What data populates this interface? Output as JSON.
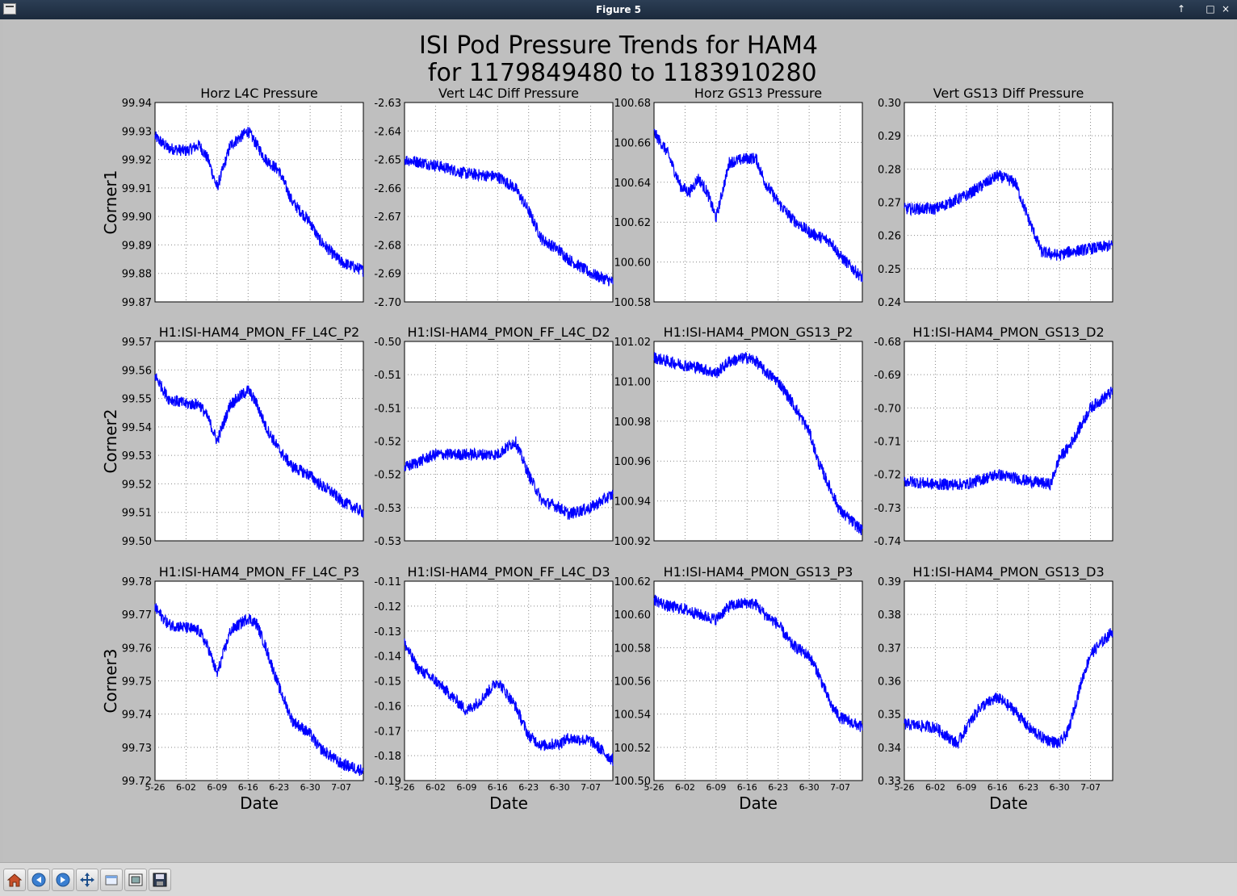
{
  "window": {
    "title": "Figure 5",
    "buttons": [
      "↑",
      "□",
      "×"
    ]
  },
  "figure": {
    "title_line1": "ISI Pod Pressure Trends for HAM4",
    "title_line2": " for 1179849480 to 1183910280",
    "row_labels": [
      "Corner1",
      "Corner2",
      "Corner3"
    ],
    "x_label": "Date"
  },
  "toolbar": {
    "buttons": [
      "home-icon",
      "back-arrow-icon",
      "forward-arrow-icon",
      "pan-move-icon",
      "zoom-rect-icon",
      "configure-subplots-icon",
      "save-disk-icon"
    ]
  },
  "chart_data": [
    {
      "type": "line",
      "title": "Horz L4C Pressure",
      "row": 0,
      "col": 0,
      "yticks": [
        "99.94",
        "99.93",
        "99.92",
        "99.91",
        "99.90",
        "99.89",
        "99.88",
        "99.87"
      ],
      "xticks": [
        "5-26",
        "6-02",
        "6-09",
        "6-16",
        "6-23",
        "6-30",
        "7-07"
      ],
      "ylim": [
        99.87,
        99.94
      ],
      "color": "#0000ff",
      "series": [
        {
          "x": [
            "5-26",
            "5-29",
            "6-02",
            "6-05",
            "6-07",
            "6-09",
            "6-12",
            "6-16",
            "6-18",
            "6-20",
            "6-23",
            "6-26",
            "6-30",
            "7-02",
            "7-05",
            "7-07",
            "7-12"
          ],
          "y": [
            99.928,
            99.924,
            99.923,
            99.925,
            99.92,
            99.91,
            99.925,
            99.93,
            99.925,
            99.92,
            99.916,
            99.905,
            99.898,
            99.892,
            99.887,
            99.884,
            99.881
          ]
        }
      ]
    },
    {
      "type": "line",
      "title": "Vert L4C Diff Pressure",
      "row": 0,
      "col": 1,
      "yticks": [
        "-2.63",
        "-2.64",
        "-2.65",
        "-2.66",
        "-2.67",
        "-2.68",
        "-2.69",
        "-2.70"
      ],
      "xticks": [
        "5-26",
        "6-02",
        "6-09",
        "6-16",
        "6-23",
        "6-30",
        "7-07"
      ],
      "ylim": [
        -2.7,
        -2.63
      ],
      "color": "#0000ff",
      "series": [
        {
          "x": [
            "5-26",
            "6-02",
            "6-09",
            "6-16",
            "6-20",
            "6-23",
            "6-26",
            "6-30",
            "7-02",
            "7-05",
            "7-07",
            "7-12"
          ],
          "y": [
            -2.65,
            -2.652,
            -2.655,
            -2.656,
            -2.66,
            -2.668,
            -2.678,
            -2.682,
            -2.685,
            -2.688,
            -2.69,
            -2.693
          ]
        }
      ]
    },
    {
      "type": "line",
      "title": "Horz GS13 Pressure",
      "row": 0,
      "col": 2,
      "yticks": [
        "100.68",
        "100.66",
        "100.64",
        "100.62",
        "100.60",
        "100.58"
      ],
      "xticks": [
        "5-26",
        "6-02",
        "6-09",
        "6-16",
        "6-23",
        "6-30",
        "7-07"
      ],
      "ylim": [
        100.58,
        100.68
      ],
      "color": "#0000ff",
      "series": [
        {
          "x": [
            "5-26",
            "5-29",
            "6-01",
            "6-03",
            "6-05",
            "6-07",
            "6-09",
            "6-12",
            "6-16",
            "6-18",
            "6-20",
            "6-23",
            "6-26",
            "6-30",
            "7-02",
            "7-05",
            "7-07",
            "7-12"
          ],
          "y": [
            100.665,
            100.655,
            100.638,
            100.635,
            100.642,
            100.635,
            100.622,
            100.65,
            100.652,
            100.652,
            100.64,
            100.63,
            100.622,
            100.615,
            100.613,
            100.61,
            100.603,
            100.592
          ]
        }
      ]
    },
    {
      "type": "line",
      "title": "Vert GS13 Diff Pressure",
      "row": 0,
      "col": 3,
      "yticks": [
        "0.30",
        "0.29",
        "0.28",
        "0.27",
        "0.26",
        "0.25",
        "0.24"
      ],
      "xticks": [
        "5-26",
        "6-02",
        "6-09",
        "6-16",
        "6-23",
        "6-30",
        "7-07"
      ],
      "ylim": [
        0.24,
        0.3
      ],
      "color": "#0000ff",
      "series": [
        {
          "x": [
            "5-26",
            "6-02",
            "6-09",
            "6-16",
            "6-20",
            "6-23",
            "6-26",
            "6-30",
            "7-02",
            "7-07",
            "7-12"
          ],
          "y": [
            0.268,
            0.268,
            0.272,
            0.278,
            0.276,
            0.265,
            0.255,
            0.254,
            0.255,
            0.256,
            0.257
          ]
        }
      ]
    },
    {
      "type": "line",
      "title": "H1:ISI-HAM4_PMON_FF_L4C_P2",
      "row": 1,
      "col": 0,
      "yticks": [
        "99.57",
        "99.56",
        "99.55",
        "99.54",
        "99.53",
        "99.52",
        "99.51",
        "99.50"
      ],
      "xticks": [
        "5-26",
        "6-02",
        "6-09",
        "6-16",
        "6-23",
        "6-30",
        "7-07"
      ],
      "ylim": [
        99.5,
        99.57
      ],
      "color": "#0000ff",
      "series": [
        {
          "x": [
            "5-26",
            "5-29",
            "6-02",
            "6-05",
            "6-07",
            "6-09",
            "6-12",
            "6-16",
            "6-18",
            "6-20",
            "6-23",
            "6-26",
            "6-30",
            "7-02",
            "7-05",
            "7-07",
            "7-12"
          ],
          "y": [
            99.558,
            99.55,
            99.548,
            99.548,
            99.543,
            99.535,
            99.548,
            99.553,
            99.548,
            99.54,
            99.532,
            99.526,
            99.523,
            99.52,
            99.517,
            99.514,
            99.51
          ]
        }
      ]
    },
    {
      "type": "line",
      "title": "H1:ISI-HAM4_PMON_FF_L4C_D2",
      "row": 1,
      "col": 1,
      "yticks": [
        "-0.50",
        "-0.51",
        "-0.51",
        "-0.52",
        "-0.52",
        "-0.53",
        "-0.53"
      ],
      "xticks": [
        "5-26",
        "6-02",
        "6-09",
        "6-16",
        "6-23",
        "6-30",
        "7-07"
      ],
      "ylim": [
        -0.53,
        -0.5
      ],
      "color": "#0000ff",
      "series": [
        {
          "x": [
            "5-26",
            "6-02",
            "6-09",
            "6-16",
            "6-20",
            "6-23",
            "6-26",
            "6-30",
            "7-02",
            "7-07",
            "7-12"
          ],
          "y": [
            -0.519,
            -0.517,
            -0.517,
            -0.517,
            -0.515,
            -0.52,
            -0.524,
            -0.525,
            -0.526,
            -0.525,
            -0.523
          ]
        }
      ]
    },
    {
      "type": "line",
      "title": "H1:ISI-HAM4_PMON_GS13_P2",
      "row": 1,
      "col": 2,
      "yticks": [
        "101.02",
        "101.00",
        "100.98",
        "100.96",
        "100.94",
        "100.92"
      ],
      "xticks": [
        "5-26",
        "6-02",
        "6-09",
        "6-16",
        "6-23",
        "6-30",
        "7-07"
      ],
      "ylim": [
        100.92,
        101.02
      ],
      "color": "#0000ff",
      "series": [
        {
          "x": [
            "5-26",
            "5-29",
            "6-02",
            "6-05",
            "6-09",
            "6-12",
            "6-16",
            "6-18",
            "6-20",
            "6-23",
            "6-26",
            "6-30",
            "7-02",
            "7-05",
            "7-07",
            "7-12"
          ],
          "y": [
            101.012,
            101.01,
            101.008,
            101.007,
            101.004,
            101.01,
            101.012,
            101.01,
            101.005,
            101.0,
            100.99,
            100.975,
            100.96,
            100.945,
            100.935,
            100.925
          ]
        }
      ]
    },
    {
      "type": "line",
      "title": "H1:ISI-HAM4_PMON_GS13_D2",
      "row": 1,
      "col": 3,
      "yticks": [
        "-0.68",
        "-0.69",
        "-0.70",
        "-0.71",
        "-0.72",
        "-0.73",
        "-0.74"
      ],
      "xticks": [
        "5-26",
        "6-02",
        "6-09",
        "6-16",
        "6-23",
        "6-30",
        "7-07"
      ],
      "ylim": [
        -0.74,
        -0.68
      ],
      "color": "#0000ff",
      "series": [
        {
          "x": [
            "5-26",
            "6-02",
            "6-09",
            "6-16",
            "6-23",
            "6-28",
            "6-30",
            "7-02",
            "7-05",
            "7-07",
            "7-12"
          ],
          "y": [
            -0.722,
            -0.723,
            -0.723,
            -0.72,
            -0.722,
            -0.723,
            -0.715,
            -0.712,
            -0.705,
            -0.7,
            -0.695
          ]
        }
      ]
    },
    {
      "type": "line",
      "title": "H1:ISI-HAM4_PMON_FF_L4C_P3",
      "row": 2,
      "col": 0,
      "yticks": [
        "99.78",
        "99.77",
        "99.76",
        "99.75",
        "99.74",
        "99.73",
        "99.72"
      ],
      "xticks": [
        "5-26",
        "6-02",
        "6-09",
        "6-16",
        "6-23",
        "6-30",
        "7-07"
      ],
      "ylim": [
        99.72,
        99.78
      ],
      "color": "#0000ff",
      "series": [
        {
          "x": [
            "5-26",
            "5-29",
            "6-02",
            "6-05",
            "6-07",
            "6-09",
            "6-12",
            "6-16",
            "6-18",
            "6-20",
            "6-23",
            "6-26",
            "6-30",
            "7-02",
            "7-05",
            "7-07",
            "7-12"
          ],
          "y": [
            99.772,
            99.767,
            99.766,
            99.765,
            99.76,
            99.752,
            99.765,
            99.769,
            99.767,
            99.76,
            99.748,
            99.738,
            99.734,
            99.73,
            99.727,
            99.725,
            99.723
          ]
        }
      ]
    },
    {
      "type": "line",
      "title": "H1:ISI-HAM4_PMON_FF_L4C_D3",
      "row": 2,
      "col": 1,
      "yticks": [
        "-0.11",
        "-0.12",
        "-0.13",
        "-0.14",
        "-0.15",
        "-0.16",
        "-0.17",
        "-0.18",
        "-0.19"
      ],
      "xticks": [
        "5-26",
        "6-02",
        "6-09",
        "6-16",
        "6-23",
        "6-30",
        "7-07"
      ],
      "ylim": [
        -0.19,
        -0.11
      ],
      "color": "#0000ff",
      "series": [
        {
          "x": [
            "5-26",
            "5-29",
            "6-02",
            "6-05",
            "6-09",
            "6-12",
            "6-16",
            "6-20",
            "6-23",
            "6-26",
            "6-30",
            "7-02",
            "7-07",
            "7-12"
          ],
          "y": [
            -0.135,
            -0.145,
            -0.15,
            -0.155,
            -0.162,
            -0.158,
            -0.15,
            -0.16,
            -0.172,
            -0.176,
            -0.175,
            -0.173,
            -0.174,
            -0.182
          ]
        }
      ]
    },
    {
      "type": "line",
      "title": "H1:ISI-HAM4_PMON_GS13_P3",
      "row": 2,
      "col": 2,
      "yticks": [
        "100.62",
        "100.60",
        "100.58",
        "100.56",
        "100.54",
        "100.52",
        "100.50"
      ],
      "xticks": [
        "5-26",
        "6-02",
        "6-09",
        "6-16",
        "6-23",
        "6-30",
        "7-07"
      ],
      "ylim": [
        100.5,
        100.62
      ],
      "color": "#0000ff",
      "series": [
        {
          "x": [
            "5-26",
            "5-29",
            "6-02",
            "6-05",
            "6-09",
            "6-12",
            "6-16",
            "6-18",
            "6-20",
            "6-23",
            "6-26",
            "6-30",
            "7-02",
            "7-05",
            "7-07",
            "7-12"
          ],
          "y": [
            100.609,
            100.605,
            100.603,
            100.6,
            100.597,
            100.605,
            100.607,
            100.606,
            100.6,
            100.594,
            100.582,
            100.575,
            100.565,
            100.545,
            100.538,
            100.532
          ]
        }
      ]
    },
    {
      "type": "line",
      "title": "H1:ISI-HAM4_PMON_GS13_D3",
      "row": 2,
      "col": 3,
      "yticks": [
        "0.39",
        "0.38",
        "0.37",
        "0.36",
        "0.35",
        "0.34",
        "0.33"
      ],
      "xticks": [
        "5-26",
        "6-02",
        "6-09",
        "6-16",
        "6-23",
        "6-30",
        "7-07"
      ],
      "ylim": [
        0.33,
        0.39
      ],
      "color": "#0000ff",
      "series": [
        {
          "x": [
            "5-26",
            "6-02",
            "6-07",
            "6-09",
            "6-12",
            "6-16",
            "6-20",
            "6-23",
            "6-26",
            "6-30",
            "7-02",
            "7-05",
            "7-07",
            "7-12"
          ],
          "y": [
            0.347,
            0.346,
            0.341,
            0.346,
            0.352,
            0.355,
            0.351,
            0.346,
            0.343,
            0.341,
            0.345,
            0.36,
            0.368,
            0.375
          ]
        }
      ]
    }
  ]
}
